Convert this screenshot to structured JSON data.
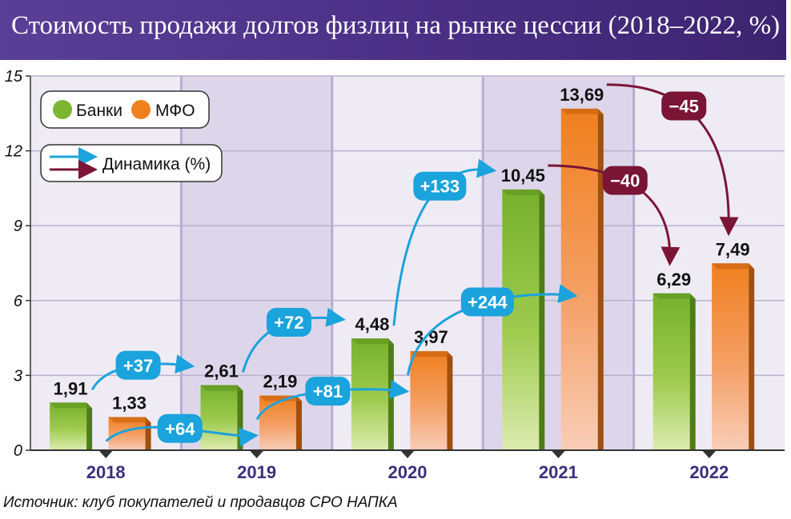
{
  "title": "Стоимость продажи долгов физлиц на рынке цессии (2018–2022, %)",
  "source": "Источник: клуб покупателей и продавцов СРО НАПКА",
  "legend": {
    "banks_label": "Банки",
    "mfo_label": "МФО",
    "dynamics_label": "Динамика (%)"
  },
  "colors": {
    "banks": "#7cb630",
    "mfo": "#f07f1e",
    "growth": "#1aa3dc",
    "decline": "#7a1535",
    "header": "#4a2f85",
    "year_label": "#3c2f7e"
  },
  "chart_data": {
    "type": "bar",
    "categories": [
      "2018",
      "2019",
      "2020",
      "2021",
      "2022"
    ],
    "series": [
      {
        "name": "Банки",
        "values": [
          1.91,
          2.61,
          4.48,
          10.45,
          6.29
        ],
        "labels": [
          "1,91",
          "2,61",
          "4,48",
          "10,45",
          "6,29"
        ]
      },
      {
        "name": "МФО",
        "values": [
          1.33,
          2.19,
          3.97,
          13.69,
          7.49
        ],
        "labels": [
          "1,33",
          "2,19",
          "3,97",
          "13,69",
          "7,49"
        ]
      }
    ],
    "ylim": [
      0,
      15
    ],
    "yticks": [
      "0",
      "3",
      "6",
      "9",
      "12",
      "15"
    ],
    "grid": true,
    "legend_position": "top-left",
    "annotations": [
      {
        "series": "Банки",
        "from": "2018",
        "to": "2019",
        "text": "+37",
        "direction": "up"
      },
      {
        "series": "Банки",
        "from": "2019",
        "to": "2020",
        "text": "+72",
        "direction": "up"
      },
      {
        "series": "Банки",
        "from": "2020",
        "to": "2021",
        "text": "+133",
        "direction": "up"
      },
      {
        "series": "Банки",
        "from": "2021",
        "to": "2022",
        "text": "−40",
        "direction": "down"
      },
      {
        "series": "МФО",
        "from": "2018",
        "to": "2019",
        "text": "+64",
        "direction": "up"
      },
      {
        "series": "МФО",
        "from": "2019",
        "to": "2020",
        "text": "+81",
        "direction": "up"
      },
      {
        "series": "МФО",
        "from": "2020",
        "to": "2021",
        "text": "+244",
        "direction": "up"
      },
      {
        "series": "МФО",
        "from": "2021",
        "to": "2022",
        "text": "−45",
        "direction": "down"
      }
    ]
  }
}
